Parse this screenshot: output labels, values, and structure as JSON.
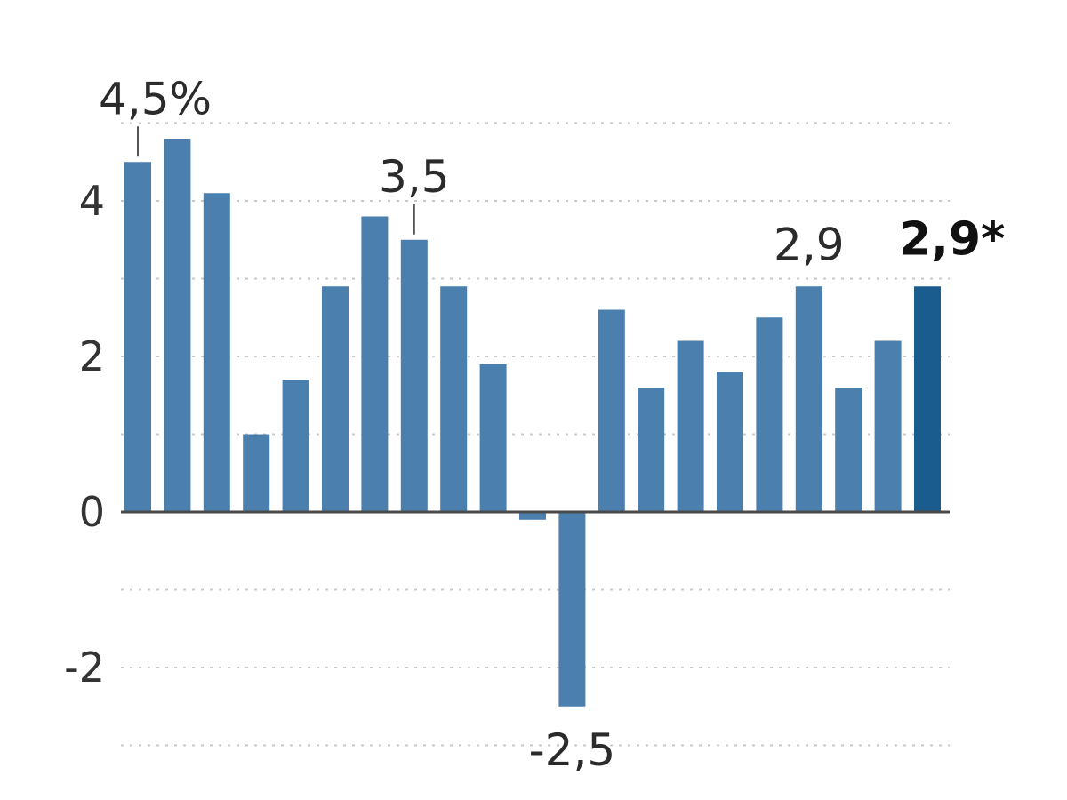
{
  "chart_data": {
    "type": "bar",
    "title": "",
    "xlabel": "",
    "ylabel": "",
    "ylim": [
      -3,
      5
    ],
    "grid": true,
    "yticks": [
      {
        "value": 4,
        "label": "4"
      },
      {
        "value": 2,
        "label": "2"
      },
      {
        "value": 0,
        "label": "0"
      },
      {
        "value": -2,
        "label": "-2"
      }
    ],
    "gridlines": [
      5,
      4,
      3,
      2,
      1,
      -1,
      -2,
      -3
    ],
    "values": [
      4.5,
      4.8,
      4.1,
      1.0,
      1.7,
      2.9,
      3.8,
      3.5,
      2.9,
      1.9,
      -0.1,
      -2.5,
      2.6,
      1.6,
      2.2,
      1.8,
      2.5,
      2.9,
      1.6,
      2.2,
      2.9
    ],
    "bar_color": "#4a7fae",
    "highlight_color": "#1a5c8e",
    "highlight_index": 20,
    "annotations": [
      {
        "index": 0,
        "text": "4,5%",
        "leader": true,
        "bold": false
      },
      {
        "index": 7,
        "text": "3,5",
        "leader": true,
        "bold": false
      },
      {
        "index": 11,
        "text": "-2,5",
        "leader": false,
        "bold": false,
        "below": true
      },
      {
        "index": 17,
        "text": "2,9",
        "leader": false,
        "bold": false
      },
      {
        "index": 20,
        "text": "2,9*",
        "leader": false,
        "bold": true
      }
    ]
  }
}
